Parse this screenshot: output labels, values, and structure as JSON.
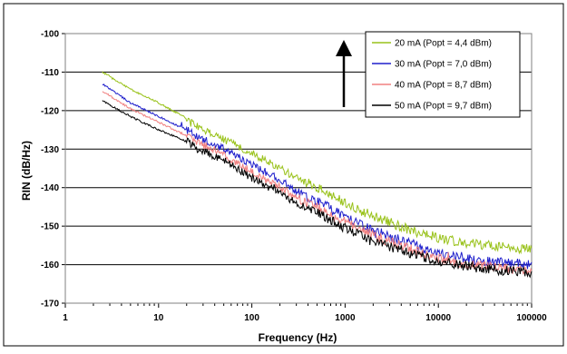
{
  "chart_data": {
    "type": "line",
    "title": "",
    "xlabel": "Frequency (Hz)",
    "ylabel": "RIN  (dB/Hz)",
    "xscale": "log",
    "xlim": [
      1,
      100000
    ],
    "ylim": [
      -170,
      -100
    ],
    "xticks": [
      1,
      10,
      100,
      1000,
      10000,
      100000
    ],
    "xtick_labels": [
      "1",
      "10",
      "100",
      "1000",
      "10000",
      "100000"
    ],
    "yticks": [
      -170,
      -160,
      -150,
      -140,
      -130,
      -120,
      -110,
      -100
    ],
    "ytick_labels": [
      "-170",
      "-160",
      "-150",
      "-140",
      "-130",
      "-120",
      "-110",
      "-100"
    ],
    "grid": "horizontal",
    "legend_position": "top-right",
    "annotation": "upward arrow",
    "series": [
      {
        "name": "20 mA (Popt = 4,4 dBm)",
        "color": "#99c21a",
        "x": [
          2.5,
          5,
          10,
          20,
          30,
          50,
          100,
          200,
          300,
          500,
          1000,
          2000,
          5000,
          10000,
          20000,
          50000,
          100000
        ],
        "y": [
          -110,
          -114.5,
          -118,
          -122,
          -125,
          -127.5,
          -131,
          -135,
          -137.5,
          -140,
          -144,
          -147.5,
          -151,
          -153,
          -154.5,
          -155.5,
          -156
        ]
      },
      {
        "name": "30 mA (Popt = 7,0 dBm)",
        "color": "#1f1fcc",
        "x": [
          2.5,
          5,
          10,
          20,
          30,
          50,
          100,
          200,
          300,
          500,
          1000,
          2000,
          5000,
          10000,
          20000,
          50000,
          100000
        ],
        "y": [
          -113,
          -118,
          -121.5,
          -125,
          -127.5,
          -130,
          -134,
          -138,
          -141,
          -143.5,
          -147.5,
          -151,
          -154.5,
          -157,
          -158.5,
          -159.5,
          -160
        ]
      },
      {
        "name": "40 mA (Popt = 8,7 dBm)",
        "color": "#f08080",
        "x": [
          2.5,
          5,
          10,
          20,
          30,
          50,
          100,
          200,
          300,
          500,
          1000,
          2000,
          5000,
          10000,
          20000,
          50000,
          100000
        ],
        "y": [
          -115,
          -119.5,
          -123,
          -126.5,
          -129,
          -131.5,
          -136,
          -140,
          -142.5,
          -145,
          -149,
          -152.5,
          -156,
          -158.5,
          -160,
          -161,
          -161.5
        ]
      },
      {
        "name": "50 mA (Popt = 9,7 dBm)",
        "color": "#000000",
        "x": [
          2.5,
          5,
          10,
          20,
          30,
          50,
          100,
          200,
          300,
          500,
          1000,
          2000,
          5000,
          10000,
          20000,
          50000,
          100000
        ],
        "y": [
          -117.5,
          -121.5,
          -125,
          -128,
          -130.5,
          -133,
          -137.5,
          -141.5,
          -144,
          -146.5,
          -150.5,
          -154,
          -157,
          -159,
          -160.5,
          -161.5,
          -162
        ]
      }
    ]
  }
}
